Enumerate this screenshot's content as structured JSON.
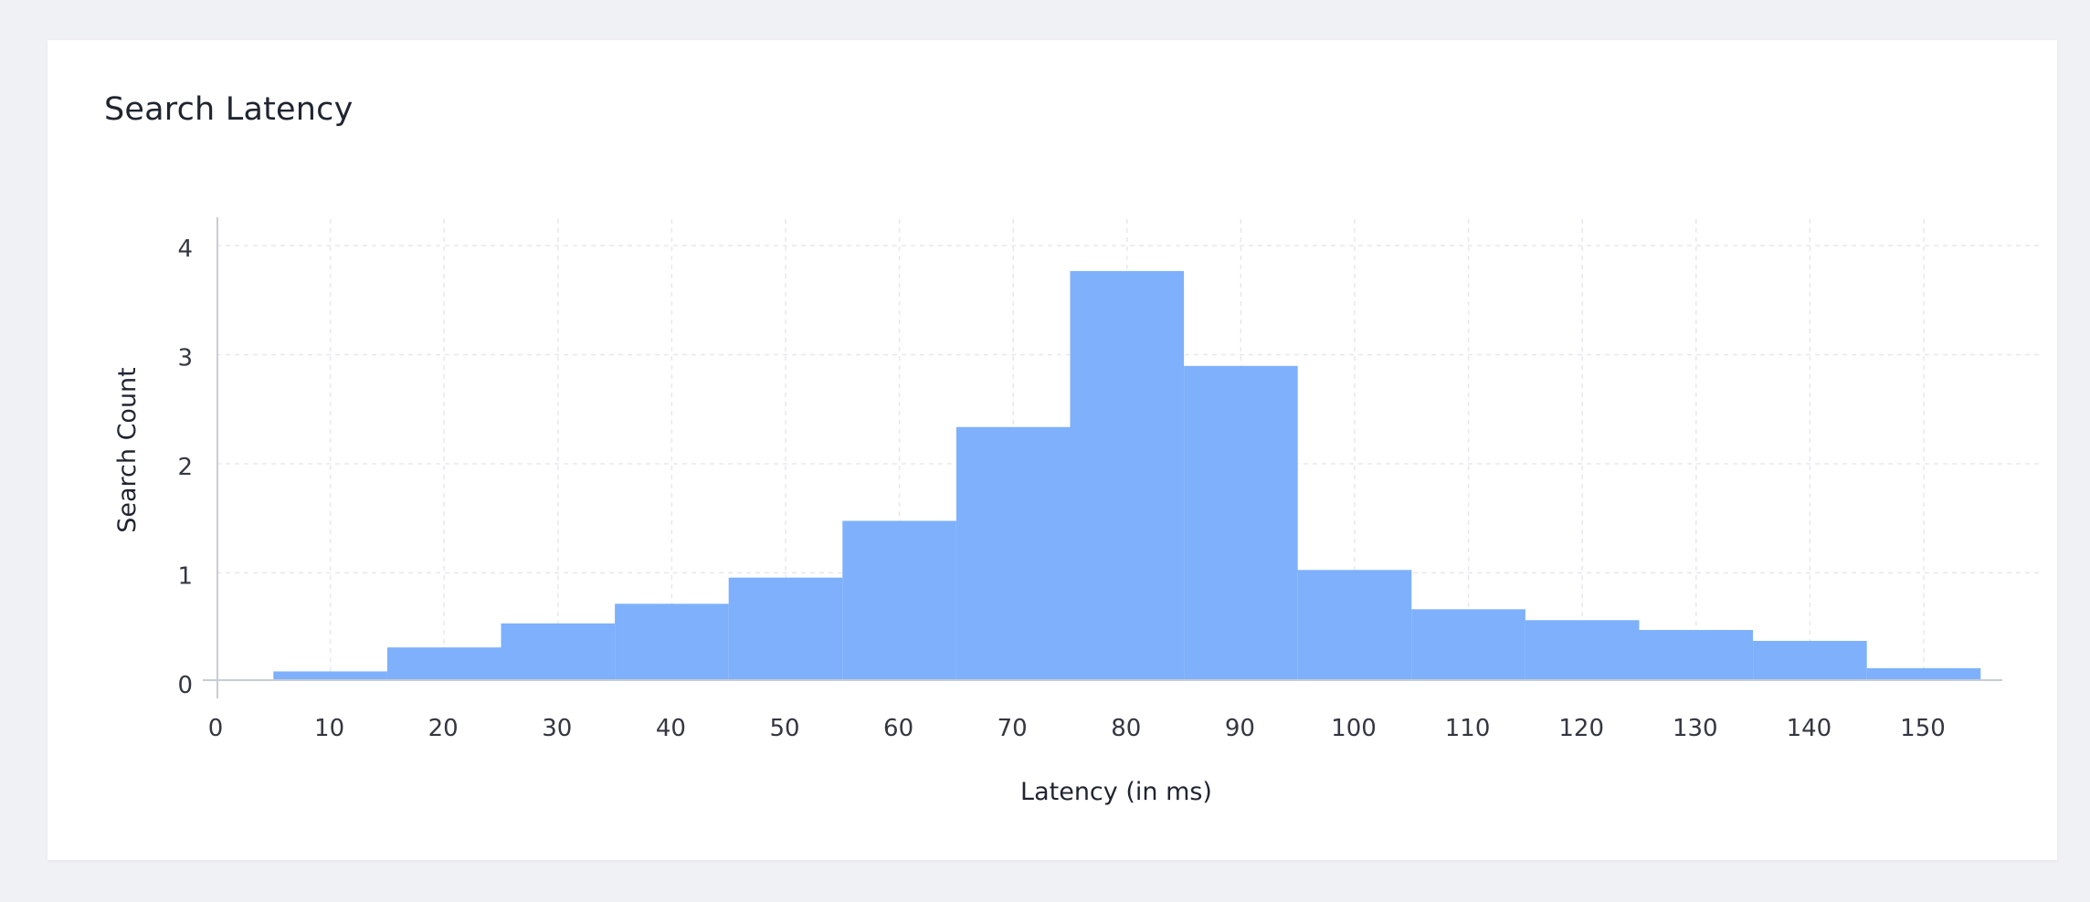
{
  "panel": {
    "title": "Search Latency"
  },
  "chart_data": {
    "type": "bar",
    "title": "Search Latency",
    "xlabel": "Latency (in ms)",
    "ylabel": "Search Count",
    "xlim": [
      0,
      156
    ],
    "ylim": [
      0,
      4.25
    ],
    "x_ticks": [
      0,
      10,
      20,
      30,
      40,
      50,
      60,
      70,
      80,
      90,
      100,
      110,
      120,
      130,
      140,
      150
    ],
    "y_ticks": [
      0,
      1,
      2,
      3,
      4
    ],
    "grid": true,
    "bin_width": 10,
    "bins": [
      {
        "start": 5,
        "end": 15,
        "value": 0.08
      },
      {
        "start": 15,
        "end": 25,
        "value": 0.3
      },
      {
        "start": 25,
        "end": 35,
        "value": 0.52
      },
      {
        "start": 35,
        "end": 45,
        "value": 0.7
      },
      {
        "start": 45,
        "end": 55,
        "value": 0.94
      },
      {
        "start": 55,
        "end": 65,
        "value": 1.46
      },
      {
        "start": 65,
        "end": 75,
        "value": 2.32
      },
      {
        "start": 75,
        "end": 85,
        "value": 3.75
      },
      {
        "start": 85,
        "end": 95,
        "value": 2.88
      },
      {
        "start": 95,
        "end": 105,
        "value": 1.01
      },
      {
        "start": 105,
        "end": 115,
        "value": 0.65
      },
      {
        "start": 115,
        "end": 125,
        "value": 0.55
      },
      {
        "start": 125,
        "end": 135,
        "value": 0.46
      },
      {
        "start": 135,
        "end": 145,
        "value": 0.36
      },
      {
        "start": 145,
        "end": 155,
        "value": 0.11
      }
    ],
    "colors": {
      "bar": "#7eb0fc",
      "grid": "#e6e8ee",
      "axis": "#c8ccd4"
    }
  }
}
